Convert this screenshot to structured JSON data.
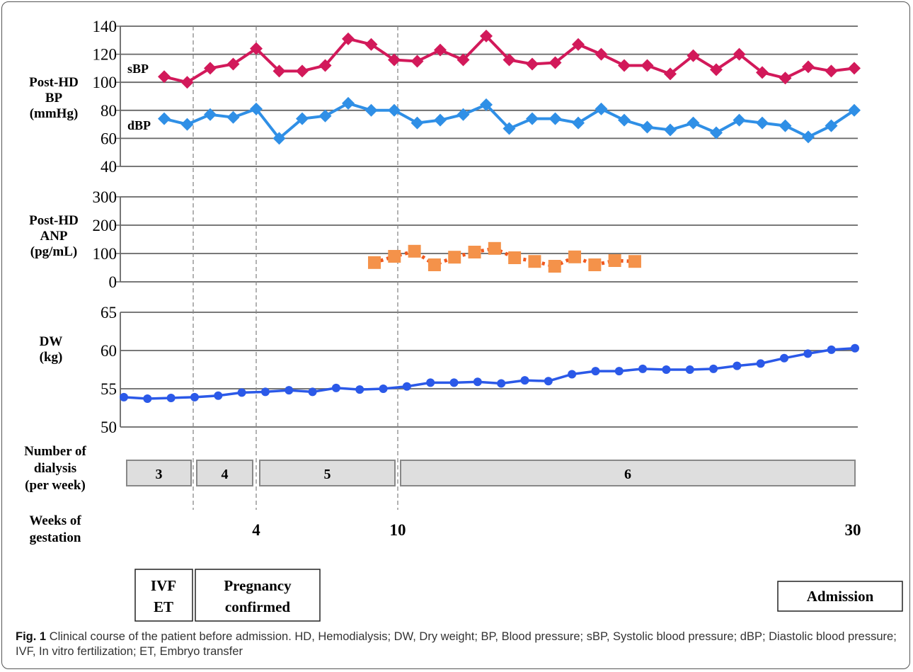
{
  "chart_data": [
    {
      "type": "line",
      "ylabel": "Post-HD BP (mmHg)",
      "ylim": [
        40,
        140
      ],
      "yticks": [
        "140",
        "120",
        "100",
        "80",
        "60",
        "40"
      ],
      "grid": true,
      "series": [
        {
          "name": "sBP",
          "color": "#d2195a",
          "marker": "diamond",
          "values": [
            104,
            100,
            110,
            113,
            124,
            108,
            108,
            112,
            131,
            127,
            116,
            115,
            123,
            116,
            133,
            116,
            113,
            114,
            127,
            120,
            112,
            112,
            106,
            119,
            109,
            120,
            107,
            103,
            111,
            108,
            110
          ]
        },
        {
          "name": "dBP",
          "color": "#2f8fe6",
          "marker": "diamond",
          "values": [
            74,
            70,
            77,
            75,
            81,
            60,
            74,
            76,
            85,
            80,
            80,
            71,
            73,
            77,
            84,
            67,
            74,
            74,
            71,
            81,
            73,
            68,
            66,
            71,
            64,
            73,
            71,
            69,
            61,
            69,
            80
          ]
        }
      ]
    },
    {
      "type": "line",
      "ylabel": "Post-HD ANP (pg/mL)",
      "ylim": [
        0,
        300
      ],
      "yticks": [
        "300",
        "200",
        "100",
        "0"
      ],
      "grid": true,
      "series": [
        {
          "name": "",
          "color": "#f4924a",
          "line_color": "#f0581e",
          "marker": "square",
          "line_style": "dotted",
          "values": [
            null,
            null,
            null,
            null,
            null,
            null,
            null,
            null,
            null,
            null,
            68,
            90,
            108,
            60,
            87,
            105,
            118,
            85,
            72,
            55,
            88,
            60,
            75,
            72
          ]
        }
      ]
    },
    {
      "type": "line",
      "ylabel": "DW (kg)",
      "ylim": [
        50,
        65
      ],
      "yticks": [
        "65",
        "60",
        "55",
        "50"
      ],
      "grid": true,
      "series": [
        {
          "name": "",
          "color": "#2b59e8",
          "marker": "circle",
          "values": [
            53.9,
            53.7,
            53.8,
            53.9,
            54.1,
            54.5,
            54.6,
            54.8,
            54.6,
            55.1,
            54.9,
            55.0,
            55.3,
            55.8,
            55.8,
            55.9,
            55.7,
            56.1,
            56.0,
            56.9,
            57.3,
            57.3,
            57.6,
            57.5,
            57.5,
            57.6,
            58.0,
            58.3,
            59.0,
            59.6,
            60.1,
            60.3
          ]
        }
      ]
    }
  ],
  "dialysis": {
    "label": "Number of dialysis (per week)",
    "label_lines": [
      "Number of",
      "dialysis",
      "(per week)"
    ],
    "boxes": [
      "3",
      "4",
      "5",
      "6"
    ]
  },
  "gestation": {
    "label_lines": [
      "Weeks of",
      "gestation"
    ],
    "ticks": [
      "4",
      "10",
      "30"
    ]
  },
  "events": {
    "ivf": [
      "IVF",
      "ET"
    ],
    "pregnancy": [
      "Pregnancy",
      "confirmed"
    ],
    "admission": "Admission"
  },
  "ylabels": {
    "bp": [
      "Post-HD",
      "BP",
      "(mmHg)"
    ],
    "anp": [
      "Post-HD",
      "ANP",
      "(pg/mL)"
    ],
    "dw": [
      "DW",
      "(kg)"
    ]
  },
  "caption": {
    "fig": "Fig. 1",
    "text": "Clinical course of the patient before admission. HD, Hemodialysis; DW, Dry weight; BP, Blood pressure; sBP, Systolic blood pressure; dBP; Diastolic blood pressure; IVF, In vitro fertilization; ET, Embryo transfer"
  }
}
